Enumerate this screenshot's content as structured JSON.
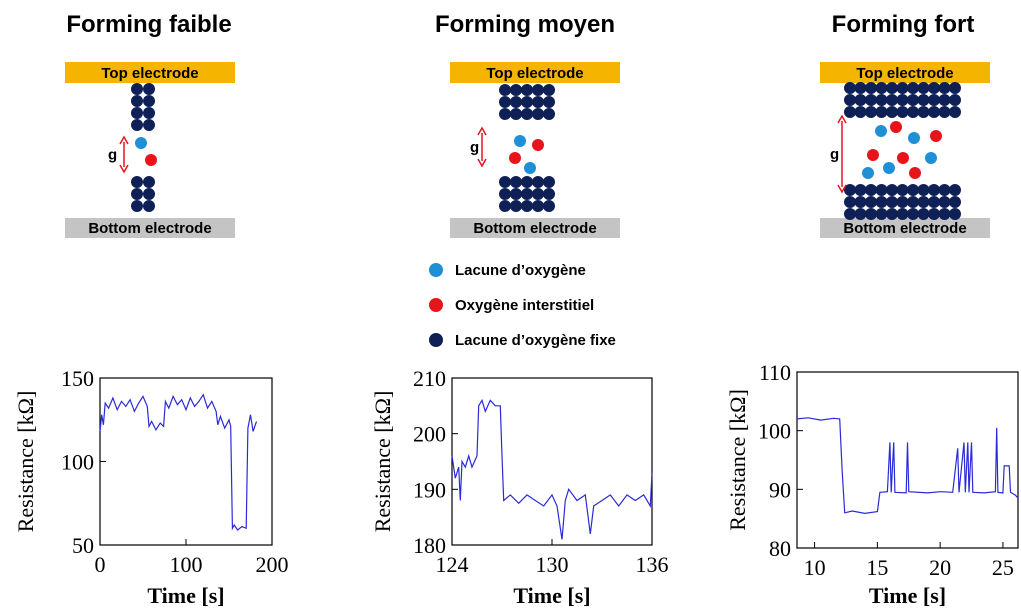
{
  "panels": [
    {
      "title": "Forming faible",
      "top_electrode": "Top electrode",
      "bottom_electrode": "Bottom electrode",
      "gap_label": "g"
    },
    {
      "title": "Forming moyen",
      "top_electrode": "Top electrode",
      "bottom_electrode": "Bottom electrode",
      "gap_label": "g"
    },
    {
      "title": "Forming fort",
      "top_electrode": "Top electrode",
      "bottom_electrode": "Bottom electrode",
      "gap_label": "g"
    }
  ],
  "legend": [
    {
      "label": "Lacune d’oxygène",
      "color": "#1f8fd6"
    },
    {
      "label": "Oxygène interstitiel",
      "color": "#e8141b"
    },
    {
      "label": "Lacune d’oxygène fixe",
      "color": "#0f2057"
    }
  ],
  "chart_data": [
    {
      "type": "line",
      "xlabel": "Time  [s]",
      "ylabel": "Resistance  [kΩ]",
      "color": "#2a2ad8",
      "x": [
        0,
        2,
        4,
        6,
        10,
        15,
        20,
        25,
        30,
        35,
        40,
        45,
        50,
        55,
        57,
        60,
        65,
        70,
        74,
        76,
        80,
        85,
        90,
        95,
        100,
        105,
        110,
        115,
        120,
        125,
        130,
        135,
        137,
        140,
        145,
        150,
        152,
        154,
        156,
        160,
        165,
        170,
        172,
        175,
        178,
        182
      ],
      "values": [
        118,
        128,
        122,
        135,
        132,
        138,
        131,
        136,
        133,
        137,
        130,
        135,
        139,
        133,
        121,
        124,
        119,
        123,
        121,
        136,
        132,
        139,
        134,
        137,
        131,
        138,
        133,
        136,
        140,
        132,
        136,
        130,
        122,
        127,
        120,
        125,
        121,
        60,
        62,
        59,
        61,
        60,
        120,
        128,
        118,
        124
      ],
      "xlim": [
        0,
        200
      ],
      "ylim": [
        50,
        150
      ],
      "xticks": [
        0,
        100,
        200
      ],
      "yticks": [
        50,
        100,
        150
      ]
    },
    {
      "type": "line",
      "xlabel": "Time  [s]",
      "ylabel": "Resistance  [kΩ]",
      "color": "#2a2ad8",
      "x": [
        124,
        124.2,
        124.4,
        124.5,
        124.6,
        124.8,
        125,
        125.2,
        125.5,
        125.6,
        125.8,
        126,
        126.3,
        126.6,
        126.9,
        127,
        127.1,
        127.5,
        128,
        128.5,
        129,
        129.5,
        130,
        130.3,
        130.6,
        130.8,
        131,
        131.5,
        132,
        132.3,
        132.5,
        133,
        133.5,
        134,
        134.5,
        135,
        135.5,
        135.9,
        136
      ],
      "values": [
        196,
        192,
        194,
        188,
        195,
        194,
        196,
        194,
        196,
        205,
        206,
        204,
        206,
        205,
        205,
        196,
        188,
        189,
        187.5,
        189,
        188,
        187,
        189,
        187,
        181,
        188,
        190,
        188,
        189,
        182,
        187,
        188,
        189,
        187,
        189,
        188,
        189,
        187,
        193
      ],
      "xlim": [
        124,
        136
      ],
      "ylim": [
        180,
        210
      ],
      "xticks": [
        124,
        130,
        136
      ],
      "yticks": [
        180,
        190,
        200,
        210
      ]
    },
    {
      "type": "line",
      "xlabel": "Time  [s]",
      "ylabel": "Resistance  [kΩ]",
      "color": "#2a2ad8",
      "x": [
        8.6,
        9.5,
        10.5,
        11.5,
        12,
        12.2,
        12.4,
        13,
        14,
        15,
        15.2,
        15.8,
        16,
        16.1,
        16.3,
        16.4,
        17.3,
        17.4,
        17.5,
        19,
        20,
        21,
        21.4,
        21.5,
        21.9,
        22,
        22.2,
        22.3,
        22.5,
        22.6,
        23.5,
        24.4,
        24.5,
        24.6,
        25,
        25.1,
        25.5,
        25.6,
        26,
        26.2
      ],
      "values": [
        102,
        102.2,
        101.8,
        102.1,
        102,
        93,
        86,
        86.3,
        85.9,
        86.2,
        89.5,
        89.6,
        98,
        89.5,
        98,
        89.5,
        89.4,
        98,
        89.6,
        89.4,
        89.6,
        89.5,
        97,
        89.5,
        98,
        89.5,
        98,
        89.5,
        98,
        89.5,
        89.4,
        89.6,
        100.5,
        89.5,
        89.4,
        94,
        94,
        89.5,
        89,
        88.5
      ],
      "xlim": [
        8.6,
        26.2
      ],
      "ylim": [
        80,
        110
      ],
      "xticks": [
        10,
        15,
        20,
        25
      ],
      "yticks": [
        80,
        90,
        100,
        110
      ]
    }
  ]
}
